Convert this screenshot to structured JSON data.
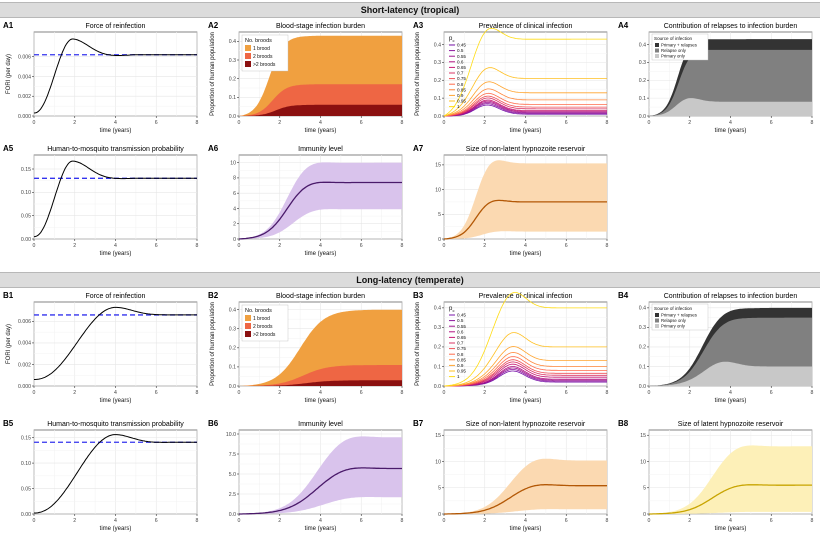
{
  "sections": [
    {
      "id": "sec1",
      "title": "Short-latency (tropical)"
    },
    {
      "id": "sec2",
      "title": "Long-latency (temperate)"
    }
  ],
  "colors": {
    "black": "#000000",
    "dashed": "#3333ee",
    "brood1": "#f0a040",
    "brood2": "#ee6644",
    "brood3": "#8b1010",
    "immunity": "#4a1a6a",
    "immunityBand": "#d9c3ec",
    "nonlatent": "#b35806",
    "nonlatentBand": "#fbd9b1",
    "latent": "#c8a400",
    "latentBand": "#fdf0b8",
    "relPrim": "#333333",
    "relOnly": "#808080",
    "primOnly": "#c8c8c8"
  },
  "legends": {
    "broods": {
      "title": "No. broods",
      "items": [
        "1 brood",
        "2 broods",
        ">2 broods"
      ]
    },
    "pc": {
      "title": "p",
      "sub": "c",
      "items": [
        "0.45",
        "0.5",
        "0.55",
        "0.6",
        "0.65",
        "0.7",
        "0.75",
        "0.8",
        "0.85",
        "0.9",
        "0.95",
        "1"
      ]
    },
    "source": {
      "title": "Source of infection",
      "items": [
        "Primary + relapses",
        "Relapse only",
        "Primary only"
      ]
    }
  },
  "chart_data": [
    {
      "id": "A1",
      "type": "line",
      "title": "Force of reinfection",
      "xlabel": "time (years)",
      "ylabel": "FORI (per day)",
      "xlim": [
        0,
        8
      ],
      "ylim": [
        0,
        0.0085
      ],
      "xticks": [
        0,
        2,
        4,
        6,
        8
      ],
      "yticks": [
        0,
        0.002,
        0.004,
        0.006
      ],
      "ytick_labels": [
        "0.000",
        "0.002",
        "0.004",
        "0.006"
      ],
      "kind": "curve",
      "equilibrium": 0.0062,
      "start": 0.0003,
      "peak": 0.0078,
      "peak_t": 1.9,
      "trough": 0.006,
      "rise": 1.0
    },
    {
      "id": "A2",
      "type": "area",
      "title": "Blood-stage infection burden",
      "xlabel": "time (years)",
      "ylabel": "Proportion of human population",
      "xlim": [
        0,
        8
      ],
      "ylim": [
        0,
        0.45
      ],
      "xticks": [
        0,
        2,
        4,
        6,
        8
      ],
      "yticks": [
        0,
        0.1,
        0.2,
        0.3,
        0.4
      ],
      "ytick_labels": [
        "0.0",
        "0.1",
        "0.2",
        "0.3",
        "0.4"
      ],
      "kind": "broods",
      "legend": "broods",
      "totals": [
        0.43,
        0.17,
        0.06
      ],
      "t50": 1.5,
      "over": 0.0,
      "width": 0.35
    },
    {
      "id": "A3",
      "type": "line",
      "title": "Prevalence of clinical infection",
      "xlabel": "time (years)",
      "ylabel": "Proportion of human population",
      "xlim": [
        0,
        8
      ],
      "ylim": [
        0,
        0.47
      ],
      "xticks": [
        0,
        2,
        4,
        6,
        8
      ],
      "yticks": [
        0,
        0.1,
        0.2,
        0.3,
        0.4
      ],
      "ytick_labels": [
        "0.0",
        "0.1",
        "0.2",
        "0.3",
        "0.4"
      ],
      "kind": "prevalence",
      "legend": "pc",
      "eq": [
        0.01,
        0.015,
        0.02,
        0.025,
        0.03,
        0.04,
        0.05,
        0.065,
        0.09,
        0.13,
        0.21,
        0.43
      ],
      "t50": 1.2,
      "overshoot": 0.025,
      "peak_t": 2.0
    },
    {
      "id": "A4",
      "type": "area",
      "title": "Contribution of relapses to infection burden",
      "xlabel": "time (years)",
      "ylabel": "",
      "xlim": [
        0,
        8
      ],
      "ylim": [
        0,
        0.47
      ],
      "xticks": [
        0,
        2,
        4,
        6,
        8
      ],
      "yticks": [
        0,
        0.1,
        0.2,
        0.3,
        0.4
      ],
      "ytick_labels": [
        "0.0",
        "0.1",
        "0.2",
        "0.3",
        "0.4"
      ],
      "kind": "source",
      "legend": "source",
      "totals": [
        0.43,
        0.37,
        0.08
      ],
      "t50": 1.4,
      "over": 0.02,
      "width": 0.3
    },
    {
      "id": "A5",
      "type": "line",
      "title": "Human-to-mosquito transmission probability",
      "xlabel": "time (years)",
      "ylabel": "",
      "xlim": [
        0,
        8
      ],
      "ylim": [
        0,
        0.18
      ],
      "xticks": [
        0,
        2,
        4,
        6,
        8
      ],
      "yticks": [
        0,
        0.05,
        0.1,
        0.15
      ],
      "ytick_labels": [
        "0.00",
        "0.05",
        "0.10",
        "0.15"
      ],
      "kind": "curve",
      "equilibrium": 0.13,
      "start": 0.005,
      "peak": 0.167,
      "peak_t": 1.9,
      "trough": 0.128,
      "rise": 1.0
    },
    {
      "id": "A6",
      "type": "line",
      "title": "Immunity level",
      "xlabel": "time (years)",
      "ylabel": "",
      "xlim": [
        0,
        8
      ],
      "ylim": [
        0,
        11
      ],
      "xticks": [
        0,
        2,
        4,
        6,
        8
      ],
      "yticks": [
        0,
        2,
        4,
        6,
        8,
        10
      ],
      "ytick_labels": [
        "0",
        "2",
        "4",
        "6",
        "8",
        "10"
      ],
      "kind": "band",
      "line": "immunity",
      "band": "immunityBand",
      "mean": 7.4,
      "lo": 3.9,
      "hi": 10,
      "t50": 2.3,
      "over": 0.05,
      "width": 0.5
    },
    {
      "id": "A7",
      "type": "line",
      "title": "Size of non-latent hypnozoite reservoir",
      "xlabel": "time (years)",
      "ylabel": "",
      "xlim": [
        0,
        8
      ],
      "ylim": [
        0,
        17
      ],
      "xticks": [
        0,
        2,
        4,
        6,
        8
      ],
      "yticks": [
        0,
        5,
        10,
        15
      ],
      "ytick_labels": [
        "0",
        "5",
        "10",
        "15"
      ],
      "kind": "band",
      "line": "nonlatent",
      "band": "nonlatentBand",
      "mean": 7.5,
      "lo": 1.5,
      "hi": 15.3,
      "t50": 1.5,
      "over": 0.1,
      "width": 0.35
    },
    {
      "id": "B1",
      "type": "line",
      "title": "Force of reinfection",
      "xlabel": "time (years)",
      "ylabel": "FORI (per day)",
      "xlim": [
        0,
        8
      ],
      "ylim": [
        0,
        0.0078
      ],
      "xticks": [
        0,
        2,
        4,
        6,
        8
      ],
      "yticks": [
        0,
        0.002,
        0.004,
        0.006
      ],
      "ytick_labels": [
        "0.000",
        "0.002",
        "0.004",
        "0.006"
      ],
      "kind": "curve",
      "equilibrium": 0.0066,
      "start": 0.0006,
      "peak": 0.0073,
      "peak_t": 4.0,
      "trough": 0.0066,
      "rise": 2.4
    },
    {
      "id": "B2",
      "type": "area",
      "title": "Blood-stage infection burden",
      "xlabel": "time (years)",
      "ylabel": "Proportion of human population",
      "xlim": [
        0,
        8
      ],
      "ylim": [
        0,
        0.44
      ],
      "xticks": [
        0,
        2,
        4,
        6,
        8
      ],
      "yticks": [
        0,
        0.1,
        0.2,
        0.3,
        0.4
      ],
      "ytick_labels": [
        "0.0",
        "0.1",
        "0.2",
        "0.3",
        "0.4"
      ],
      "kind": "broods",
      "legend": "broods",
      "totals": [
        0.4,
        0.11,
        0.03
      ],
      "t50": 3.0,
      "over": 0.0,
      "width": 0.6
    },
    {
      "id": "B3",
      "type": "line",
      "title": "Prevalence of clinical infection",
      "xlabel": "time (years)",
      "ylabel": "Proportion of human population",
      "xlim": [
        0,
        8
      ],
      "ylim": [
        0,
        0.43
      ],
      "xticks": [
        0,
        2,
        4,
        6,
        8
      ],
      "yticks": [
        0,
        0.1,
        0.2,
        0.3,
        0.4
      ],
      "ytick_labels": [
        "0.0",
        "0.1",
        "0.2",
        "0.3",
        "0.4"
      ],
      "kind": "prevalence",
      "legend": "pc",
      "eq": [
        0.02,
        0.025,
        0.03,
        0.035,
        0.045,
        0.055,
        0.065,
        0.08,
        0.1,
        0.13,
        0.2,
        0.4
      ],
      "t50": 2.1,
      "overshoot": 0.02,
      "peak_t": 3.3
    },
    {
      "id": "B4",
      "type": "area",
      "title": "Contribution of relapses to infection burden",
      "xlabel": "time (years)",
      "ylabel": "",
      "xlim": [
        0,
        8
      ],
      "ylim": [
        0,
        0.43
      ],
      "xticks": [
        0,
        2,
        4,
        6,
        8
      ],
      "yticks": [
        0,
        0.1,
        0.2,
        0.3,
        0.4
      ],
      "ytick_labels": [
        "0.0",
        "0.1",
        "0.2",
        "0.3",
        "0.4"
      ],
      "kind": "source",
      "legend": "source",
      "totals": [
        0.4,
        0.35,
        0.1
      ],
      "t50": 2.6,
      "over": 0.02,
      "width": 0.5
    },
    {
      "id": "B5",
      "type": "line",
      "title": "Human-to-mosquito transmission probability",
      "xlabel": "time (years)",
      "ylabel": "",
      "xlim": [
        0,
        8
      ],
      "ylim": [
        0,
        0.165
      ],
      "xticks": [
        0,
        2,
        4,
        6,
        8
      ],
      "yticks": [
        0,
        0.05,
        0.1,
        0.15
      ],
      "ytick_labels": [
        "0.00",
        "0.05",
        "0.10",
        "0.15"
      ],
      "kind": "curve",
      "equilibrium": 0.141,
      "start": 0.002,
      "peak": 0.156,
      "peak_t": 4.0,
      "trough": 0.14,
      "rise": 2.4
    },
    {
      "id": "B6",
      "type": "line",
      "title": "Immunity level",
      "xlabel": "time (years)",
      "ylabel": "",
      "xlim": [
        0,
        8
      ],
      "ylim": [
        0,
        10.5
      ],
      "xticks": [
        0,
        2,
        4,
        6,
        8
      ],
      "yticks": [
        0,
        2.5,
        5,
        7.5,
        10
      ],
      "ytick_labels": [
        "0.0",
        "2.5",
        "5.0",
        "7.5",
        "10.0"
      ],
      "kind": "band",
      "line": "immunity",
      "band": "immunityBand",
      "mean": 5.7,
      "lo": 2.1,
      "hi": 9.6,
      "t50": 3.7,
      "over": 0.07,
      "width": 0.7
    },
    {
      "id": "B7",
      "type": "line",
      "title": "Size of non-latent hypnozoite reservoir",
      "xlabel": "time (years)",
      "ylabel": "",
      "xlim": [
        0,
        8
      ],
      "ylim": [
        0,
        16
      ],
      "xticks": [
        0,
        2,
        4,
        6,
        8
      ],
      "yticks": [
        0,
        5,
        10,
        15
      ],
      "ytick_labels": [
        "0",
        "5",
        "10",
        "15"
      ],
      "kind": "band",
      "line": "nonlatent",
      "band": "nonlatentBand",
      "mean": 5.4,
      "lo": 0.9,
      "hi": 10.2,
      "t50": 3.1,
      "over": 0.1,
      "width": 0.6
    },
    {
      "id": "B8",
      "type": "line",
      "title": "Size of latent hypnozoite reservoir",
      "xlabel": "time (years)",
      "ylabel": "",
      "xlim": [
        0,
        8
      ],
      "ylim": [
        0,
        16
      ],
      "xticks": [
        0,
        2,
        4,
        6,
        8
      ],
      "yticks": [
        0,
        5,
        10,
        15
      ],
      "ytick_labels": [
        "0",
        "5",
        "10",
        "15"
      ],
      "kind": "band",
      "line": "latent",
      "band": "latentBand",
      "mean": 5.5,
      "lo": 0.4,
      "hi": 12.9,
      "t50": 3.0,
      "over": 0.07,
      "width": 0.6
    }
  ]
}
